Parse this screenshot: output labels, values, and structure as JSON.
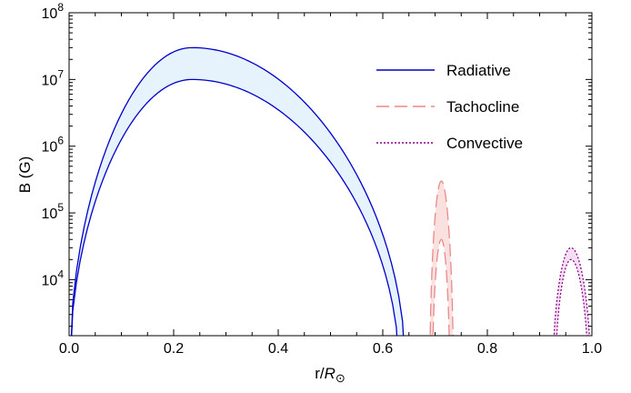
{
  "chart_data": {
    "type": "area",
    "xlabel": "r/R⊙",
    "xlabel_parts": {
      "base": "r/",
      "var": "R",
      "sub": "⊙"
    },
    "ylabel": "B (G)",
    "xlim": [
      0.0,
      1.0
    ],
    "ylim_log10": [
      3.16,
      8.0
    ],
    "y_scale": "log",
    "grid": false,
    "legend_position": "top-right",
    "x_ticks": [
      "0.0",
      "0.2",
      "0.4",
      "0.6",
      "0.8",
      "1.0"
    ],
    "x_tick_values": [
      0.0,
      0.2,
      0.4,
      0.6,
      0.8,
      1.0
    ],
    "y_ticks": [
      {
        "base": "10",
        "exp": "4",
        "log": 4
      },
      {
        "base": "10",
        "exp": "5",
        "log": 5
      },
      {
        "base": "10",
        "exp": "6",
        "log": 6
      },
      {
        "base": "10",
        "exp": "7",
        "log": 7
      },
      {
        "base": "10",
        "exp": "8",
        "log": 8
      }
    ],
    "series": [
      {
        "name": "Radiative",
        "color": "#0000cc",
        "fill": "#e6f2fc",
        "dash": "solid",
        "x_range": [
          0.0,
          0.645
        ],
        "peak_x": 0.235,
        "upper_peak": 30000000,
        "lower_peak": 10000000,
        "upper_end_x": 0.645,
        "lower_end_x": 0.633
      },
      {
        "name": "Tachocline",
        "color": "#e88a8a",
        "fill": "#fbe0e0",
        "dash": "dashed",
        "x_range": [
          0.69,
          0.735
        ],
        "peak_x": 0.712,
        "upper_peak": 300000,
        "lower_peak": 40000,
        "upper_end_x": 0.735,
        "lower_end_x": 0.728,
        "upper_start_x": 0.69,
        "lower_start_x": 0.695
      },
      {
        "name": "Convective",
        "color": "#8b008b",
        "fill": "#f3dff1",
        "dash": "dotted",
        "x_range": [
          0.925,
          0.998
        ],
        "peak_x": 0.96,
        "upper_peak": 30000,
        "lower_peak": 20000,
        "upper_start_x": 0.925,
        "lower_start_x": 0.93,
        "upper_end_x": 0.998,
        "lower_end_x": 0.993
      }
    ]
  }
}
